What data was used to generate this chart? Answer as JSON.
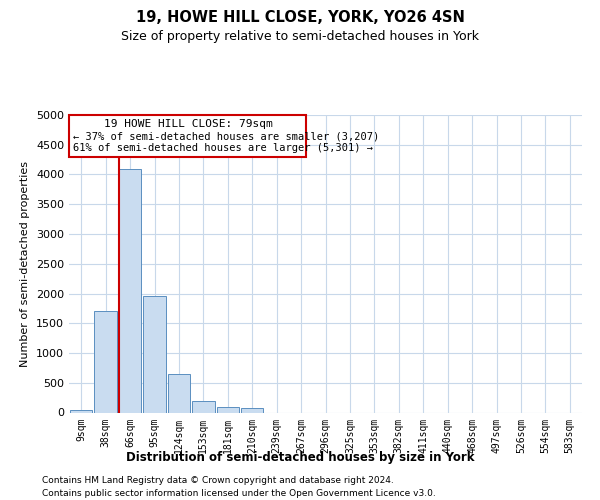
{
  "title": "19, HOWE HILL CLOSE, YORK, YO26 4SN",
  "subtitle": "Size of property relative to semi-detached houses in York",
  "xlabel": "Distribution of semi-detached houses by size in York",
  "ylabel": "Number of semi-detached properties",
  "footnote1": "Contains HM Land Registry data © Crown copyright and database right 2024.",
  "footnote2": "Contains public sector information licensed under the Open Government Licence v3.0.",
  "bar_color": "#c9dcf0",
  "bar_edgecolor": "#5a8fc0",
  "grid_color": "#c8d8ea",
  "vline_color": "#cc0000",
  "annotation_box_edgecolor": "#cc0000",
  "annotation_text1": "19 HOWE HILL CLOSE: 79sqm",
  "annotation_text2": "← 37% of semi-detached houses are smaller (3,207)",
  "annotation_text3": "61% of semi-detached houses are larger (5,301) →",
  "categories": [
    "9sqm",
    "38sqm",
    "66sqm",
    "95sqm",
    "124sqm",
    "153sqm",
    "181sqm",
    "210sqm",
    "239sqm",
    "267sqm",
    "296sqm",
    "325sqm",
    "353sqm",
    "382sqm",
    "411sqm",
    "440sqm",
    "468sqm",
    "497sqm",
    "526sqm",
    "554sqm",
    "583sqm"
  ],
  "values": [
    50,
    1700,
    4100,
    1950,
    650,
    200,
    100,
    80,
    0,
    0,
    0,
    0,
    0,
    0,
    0,
    0,
    0,
    0,
    0,
    0,
    0
  ],
  "property_bin_index": 2,
  "ylim_max": 5000,
  "ytick_step": 500,
  "title_fontsize": 10.5,
  "subtitle_fontsize": 9.0,
  "ylabel_fontsize": 8.0,
  "xlabel_fontsize": 8.5,
  "tick_fontsize": 8.0,
  "xtick_fontsize": 7.0,
  "annot_fontsize1": 8.0,
  "annot_fontsize2": 7.5,
  "footnote_fontsize": 6.5
}
